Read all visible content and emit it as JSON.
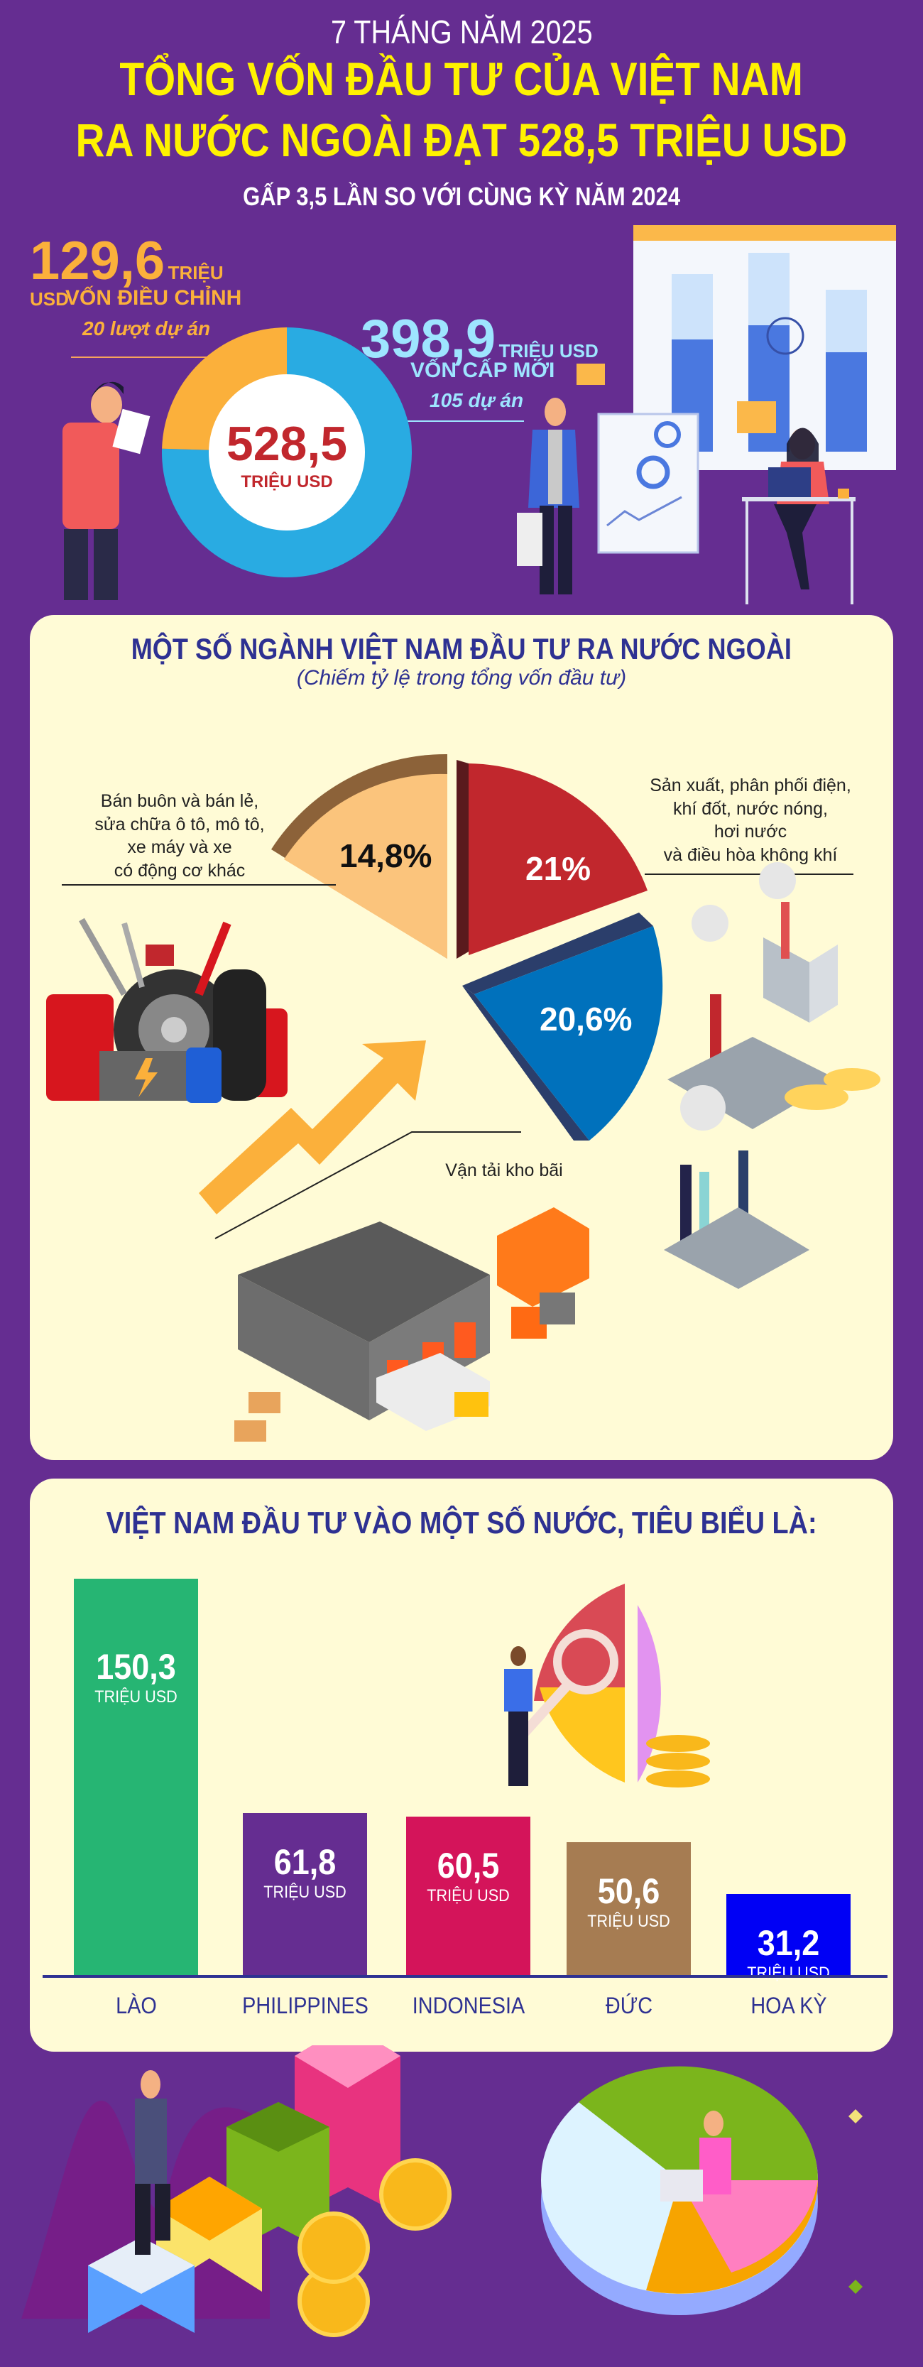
{
  "header": {
    "period": "7 THÁNG NĂM 2025",
    "title_line1": "TỔNG VỐN ĐẦU TƯ CỦA VIỆT NAM",
    "title_line2": "RA NƯỚC NGOÀI ĐẠT 528,5 TRIỆU USD",
    "subtitle": "GẤP 3,5 LẦN SO VỚI CÙNG KỲ NĂM 2024"
  },
  "summary": {
    "adjusted": {
      "value": "129,6",
      "unit": "TRIỆU USD",
      "label": "VỐN ĐIỀU CHỈNH",
      "projects": "20 lượt dự án"
    },
    "new": {
      "value": "398,9",
      "unit": "TRIỆU USD",
      "label": "VỐN CẤP MỚI",
      "projects": "105 dự án"
    },
    "total": {
      "value": "528,5",
      "unit": "TRIỆU USD"
    }
  },
  "sectors": {
    "title": "MỘT SỐ NGÀNH VIỆT NAM ĐẦU TƯ RA NƯỚC NGOÀI",
    "subtitle": "(Chiếm tỷ lệ trong tổng vốn đầu tư)",
    "items": [
      {
        "label_lines": [
          "Bán buôn và bán lẻ,",
          "sửa chữa ô tô, mô tô,",
          "xe máy và xe",
          "có động cơ khác"
        ],
        "value": "14,8%"
      },
      {
        "label_lines": [
          "Sản xuất, phân phối điện,",
          "khí đốt, nước nóng,",
          "hơi nước",
          "và điều hòa không khí"
        ],
        "value": "21%"
      },
      {
        "label_lines": [
          "Vận tải kho bãi"
        ],
        "value": "20,6%"
      }
    ]
  },
  "countries": {
    "title": "VIỆT NAM ĐẦU TƯ VÀO MỘT SỐ NƯỚC, TIÊU BIỂU LÀ:",
    "unit": "TRIỆU USD"
  },
  "chart_data": [
    {
      "type": "pie",
      "style": "donut",
      "values": [
        398.9,
        129.6
      ],
      "categories": [
        "VỐN CẤP MỚI",
        "VỐN ĐIỀU CHỈNH"
      ],
      "colors": [
        "#29abe2",
        "#fbb03b"
      ],
      "center_label": "528,5 TRIỆU USD"
    },
    {
      "type": "pie",
      "style": "exploded-3d",
      "categories": [
        "Bán buôn và bán lẻ, sửa chữa ô tô, mô tô, xe máy và xe có động cơ khác",
        "Sản xuất, phân phối điện, khí đốt, nước nóng, hơi nước và điều hòa không khí",
        "Vận tải kho bãi"
      ],
      "values": [
        14.8,
        21,
        20.6
      ],
      "colors": [
        "#fbc47c",
        "#c1272d",
        "#0071bc"
      ]
    },
    {
      "type": "bar",
      "categories": [
        "LÀO",
        "PHILIPPINES",
        "INDONESIA",
        "ĐỨC",
        "HOA KỲ"
      ],
      "values": [
        150.3,
        61.8,
        60.5,
        50.6,
        31.2
      ],
      "value_labels": [
        "150,3",
        "61,8",
        "60,5",
        "50,6",
        "31,2"
      ],
      "colors": [
        "#26b573",
        "#652d91",
        "#d4145a",
        "#a67c52",
        "#0000f5"
      ],
      "ylabel": "TRIỆU USD"
    }
  ]
}
